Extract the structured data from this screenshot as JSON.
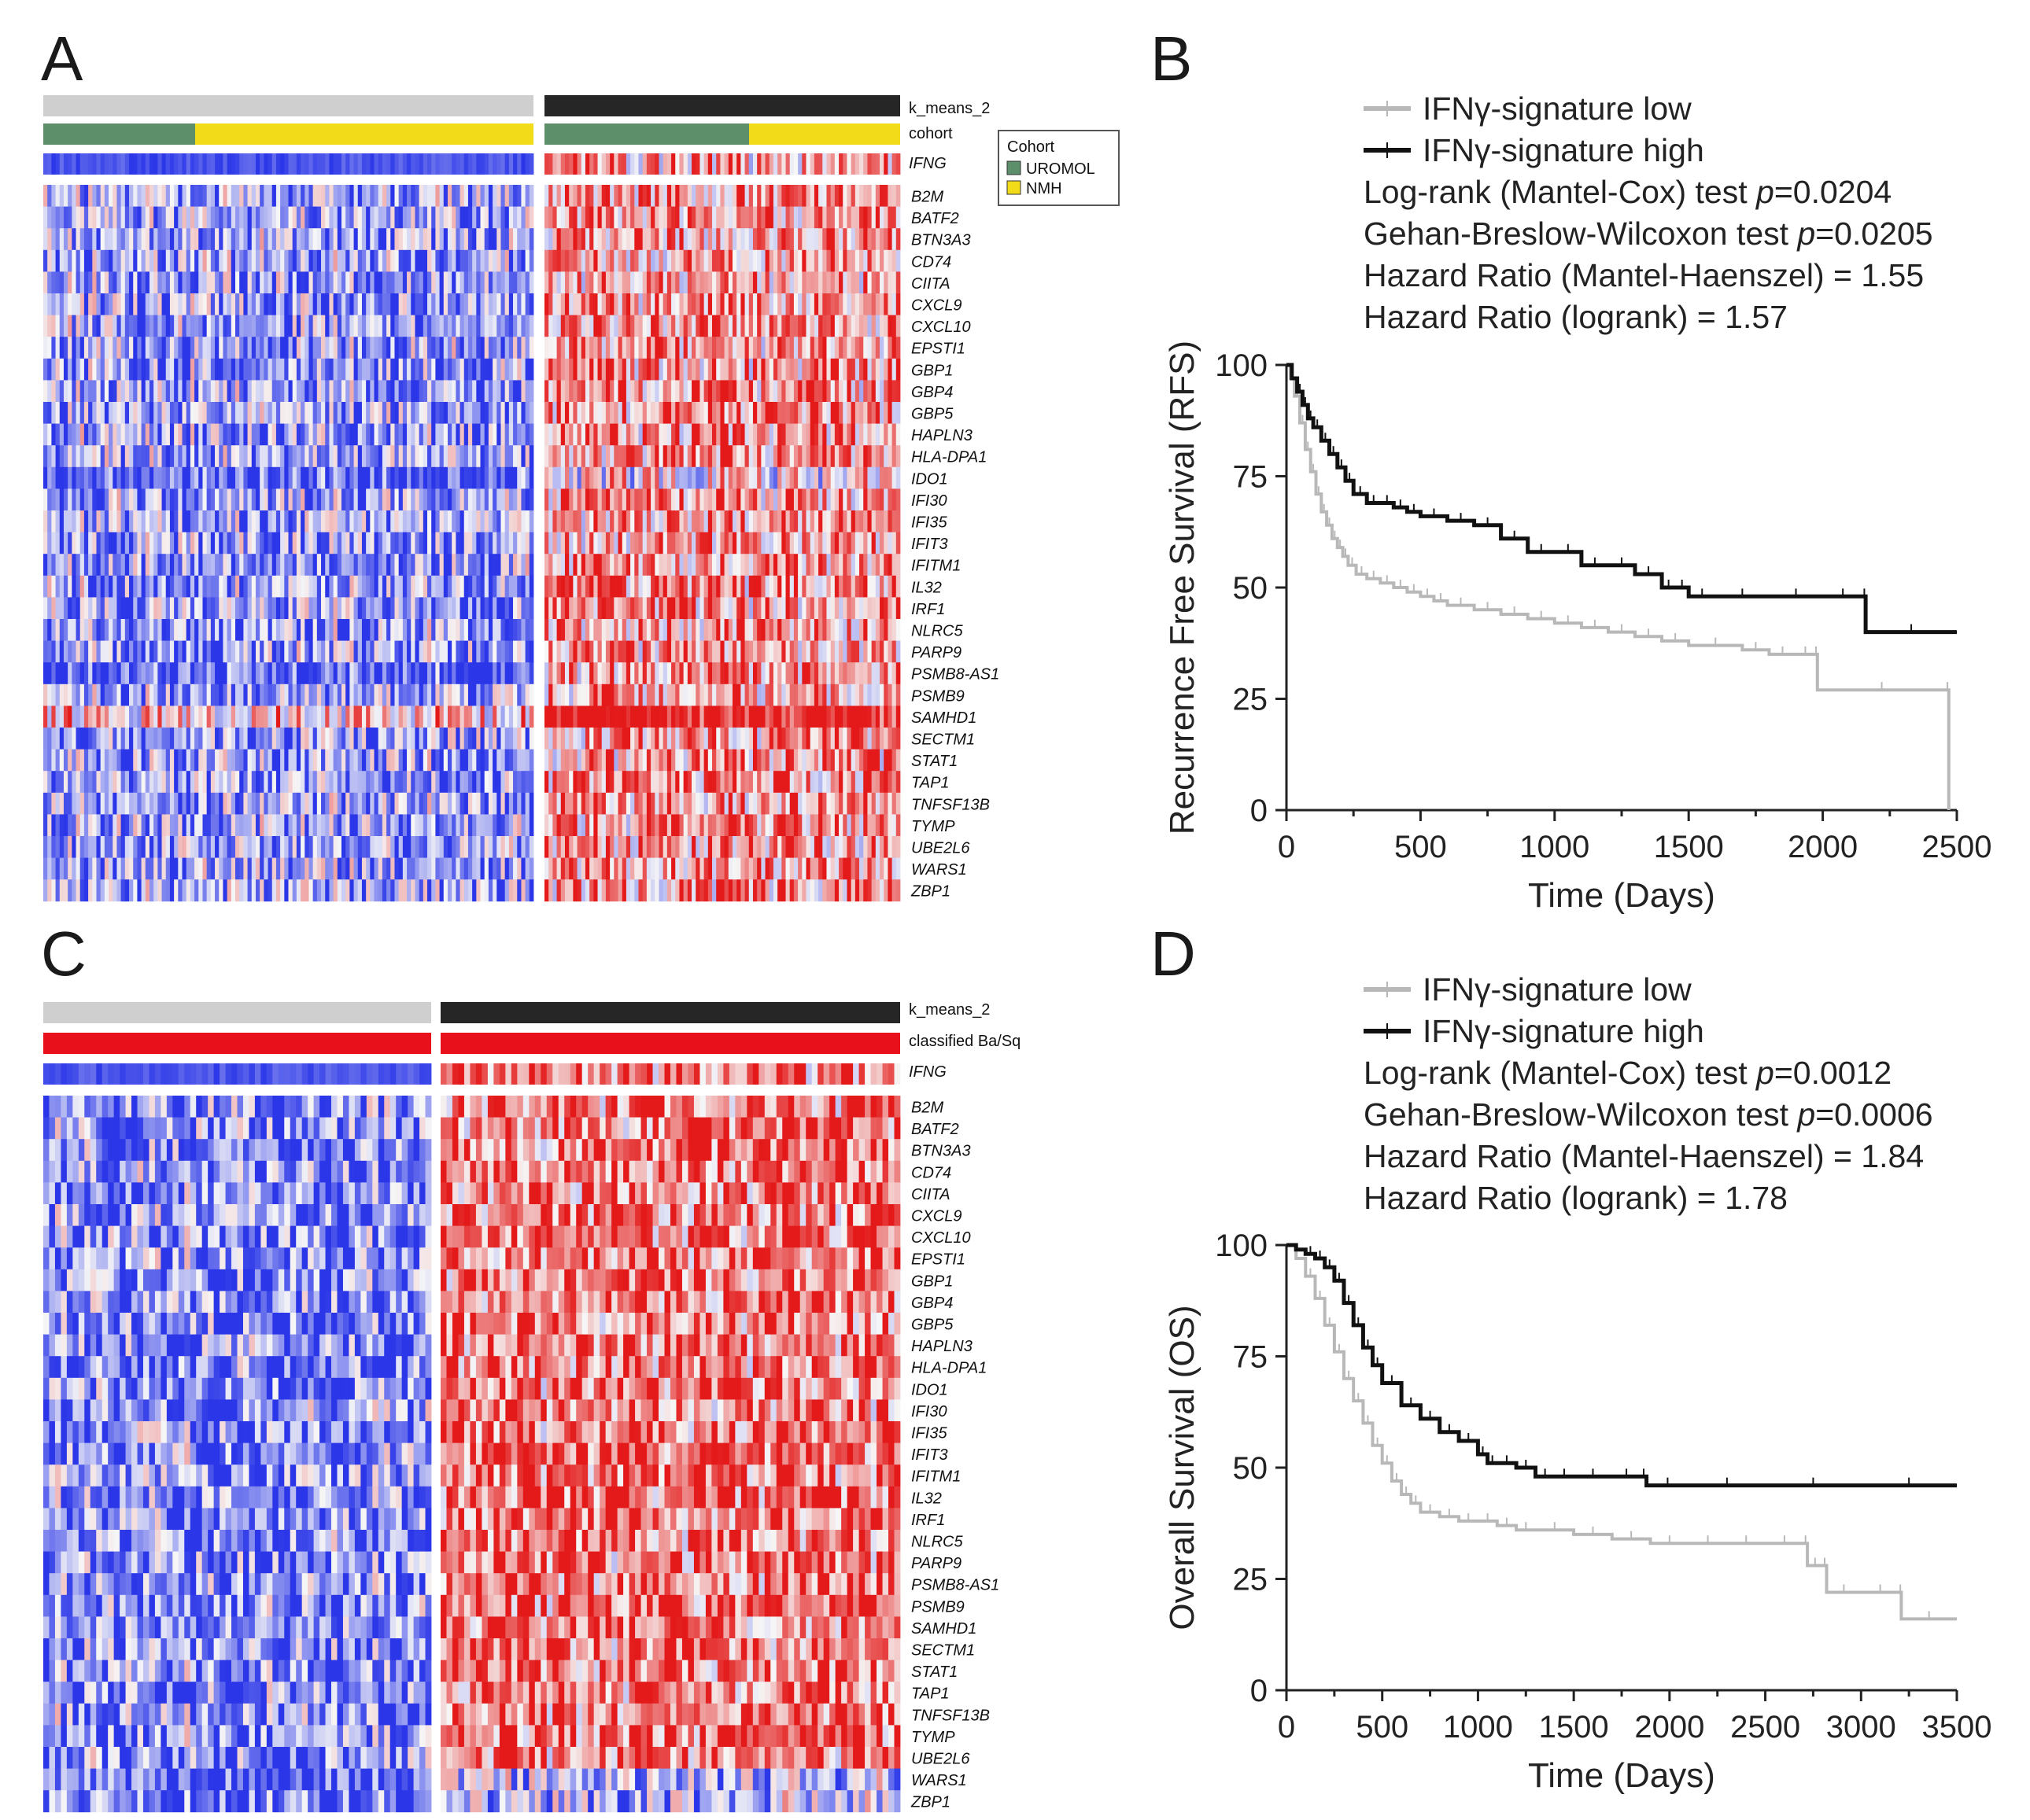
{
  "colors": {
    "low": "#2a36e8",
    "mid": "#f6f6f6",
    "high": "#e41a1a",
    "uromol": "#5e8f6b",
    "nmh": "#f2dc1a",
    "basq": "#e8101a",
    "cluster1": "#cfcfcf",
    "cluster2": "#262626",
    "sig_low": "#b8b8b8",
    "sig_high": "#111111"
  },
  "panels": {
    "A": {
      "letter": "A"
    },
    "B": {
      "letter": "B"
    },
    "C": {
      "letter": "C"
    },
    "D": {
      "letter": "D"
    }
  },
  "heatmapA": {
    "kmeans_label": "k_means_2",
    "cohort_label": "cohort",
    "ifng_label": "IFNG",
    "legend": {
      "title": "Cohort",
      "items": [
        {
          "label": "UROMOL",
          "color": "#5e8f6b"
        },
        {
          "label": "NMH",
          "color": "#f2dc1a"
        }
      ]
    },
    "genes": [
      "B2M",
      "BATF2",
      "BTN3A3",
      "CD74",
      "CIITA",
      "CXCL9",
      "CXCL10",
      "EPSTI1",
      "GBP1",
      "GBP4",
      "GBP5",
      "HAPLN3",
      "HLA-DPA1",
      "IDO1",
      "IFI30",
      "IFI35",
      "IFIT3",
      "IFITM1",
      "IL32",
      "IRF1",
      "NLRC5",
      "PARP9",
      "PSMB8-AS1",
      "PSMB9",
      "SAMHD1",
      "SECTM1",
      "STAT1",
      "TAP1",
      "TNFSF13B",
      "TYMP",
      "UBE2L6",
      "WARS1",
      "ZBP1"
    ]
  },
  "heatmapC": {
    "kmeans_label": "k_means_2",
    "class_label": "classified Ba/Sq",
    "ifng_label": "IFNG",
    "genes": [
      "B2M",
      "BATF2",
      "BTN3A3",
      "CD74",
      "CIITA",
      "CXCL9",
      "CXCL10",
      "EPSTI1",
      "GBP1",
      "GBP4",
      "GBP5",
      "HAPLN3",
      "HLA-DPA1",
      "IDO1",
      "IFI30",
      "IFI35",
      "IFIT3",
      "IFITM1",
      "IL32",
      "IRF1",
      "NLRC5",
      "PARP9",
      "PSMB8-AS1",
      "PSMB9",
      "SAMHD1",
      "SECTM1",
      "STAT1",
      "TAP1",
      "TNFSF13B",
      "TYMP",
      "UBE2L6",
      "WARS1",
      "ZBP1"
    ]
  },
  "chart_data": [
    {
      "panel": "B",
      "type": "line",
      "title": "",
      "xlabel": "Time (Days)",
      "ylabel": "Recurrence Free Survival (RFS)",
      "xlim": [
        0,
        2500
      ],
      "ylim": [
        0,
        100
      ],
      "xticks": [
        0,
        500,
        1000,
        1500,
        2000,
        2500
      ],
      "yticks": [
        0,
        25,
        50,
        75,
        100
      ],
      "legend": [
        "IFNγ-signature low",
        "IFNγ-signature high"
      ],
      "stats": [
        {
          "prefix": "Log-rank (Mantel-Cox) test ",
          "p": "p",
          "suffix": "=0.0204"
        },
        {
          "prefix": "Gehan-Breslow-Wilcoxon test ",
          "p": "p",
          "suffix": "=0.0205"
        },
        {
          "prefix": "Hazard Ratio (Mantel-Haenszel) = 1.55",
          "p": "",
          "suffix": ""
        },
        {
          "prefix": "Hazard Ratio (logrank) = 1.57",
          "p": "",
          "suffix": ""
        }
      ],
      "series": [
        {
          "name": "IFNγ-signature low",
          "x": [
            0,
            15,
            30,
            50,
            70,
            90,
            110,
            130,
            150,
            170,
            190,
            210,
            230,
            260,
            300,
            350,
            400,
            450,
            500,
            550,
            600,
            700,
            800,
            900,
            1000,
            1100,
            1200,
            1300,
            1400,
            1500,
            1700,
            1800,
            1900,
            1970,
            1980,
            2460,
            2470
          ],
          "y": [
            100,
            97,
            93,
            87,
            81,
            76,
            71,
            67,
            64,
            61,
            59,
            57,
            55,
            53,
            52,
            51,
            50,
            49,
            48,
            47,
            46,
            45,
            44,
            43,
            42,
            41,
            40,
            39,
            38,
            37,
            36,
            35,
            35,
            35,
            27,
            27,
            0
          ]
        },
        {
          "name": "IFNγ-signature high",
          "x": [
            0,
            20,
            40,
            60,
            80,
            100,
            130,
            160,
            190,
            220,
            250,
            300,
            350,
            400,
            450,
            500,
            600,
            700,
            800,
            900,
            1000,
            1100,
            1200,
            1300,
            1400,
            1450,
            1500,
            1600,
            1800,
            2000,
            2150,
            2160,
            2500
          ],
          "y": [
            100,
            97,
            94,
            91,
            88,
            86,
            83,
            80,
            77,
            74,
            71,
            69,
            69,
            68,
            67,
            66,
            65,
            64,
            61,
            58,
            58,
            55,
            55,
            53,
            50,
            50,
            48,
            48,
            48,
            48,
            48,
            40,
            40
          ]
        }
      ]
    },
    {
      "panel": "D",
      "type": "line",
      "title": "",
      "xlabel": "Time (Days)",
      "ylabel": "Overall Survival (OS)",
      "xlim": [
        0,
        3500
      ],
      "ylim": [
        0,
        100
      ],
      "xticks": [
        0,
        500,
        1000,
        1500,
        2000,
        2500,
        3000,
        3500
      ],
      "yticks": [
        0,
        25,
        50,
        75,
        100
      ],
      "legend": [
        "IFNγ-signature low",
        "IFNγ-signature high"
      ],
      "stats": [
        {
          "prefix": "Log-rank (Mantel-Cox) test ",
          "p": "p",
          "suffix": "=0.0012"
        },
        {
          "prefix": "Gehan-Breslow-Wilcoxon test ",
          "p": "p",
          "suffix": "=0.0006"
        },
        {
          "prefix": "Hazard Ratio (Mantel-Haenszel) = 1.84",
          "p": "",
          "suffix": ""
        },
        {
          "prefix": "Hazard Ratio (logrank) = 1.78",
          "p": "",
          "suffix": ""
        }
      ],
      "series": [
        {
          "name": "IFNγ-signature low",
          "x": [
            0,
            50,
            100,
            150,
            200,
            250,
            300,
            350,
            400,
            450,
            500,
            550,
            600,
            650,
            700,
            800,
            900,
            1000,
            1100,
            1200,
            1300,
            1500,
            1700,
            1900,
            2100,
            2300,
            2500,
            2700,
            2720,
            2800,
            2820,
            3000,
            3200,
            3210,
            3500
          ],
          "y": [
            100,
            97,
            93,
            88,
            82,
            76,
            70,
            65,
            60,
            55,
            51,
            47,
            44,
            42,
            40,
            39,
            38,
            38,
            37,
            36,
            36,
            35,
            34,
            33,
            33,
            33,
            33,
            33,
            28,
            28,
            22,
            22,
            22,
            16,
            16
          ]
        },
        {
          "name": "IFNγ-signature high",
          "x": [
            0,
            50,
            100,
            150,
            200,
            250,
            300,
            350,
            400,
            450,
            500,
            600,
            700,
            800,
            900,
            1000,
            1050,
            1100,
            1200,
            1300,
            1400,
            1500,
            1700,
            1850,
            1880,
            2100,
            2500,
            3000,
            3500
          ],
          "y": [
            100,
            99,
            98,
            97,
            95,
            92,
            87,
            82,
            77,
            73,
            69,
            64,
            61,
            58,
            56,
            53,
            51,
            51,
            50,
            48,
            48,
            48,
            48,
            48,
            46,
            46,
            46,
            46,
            46
          ]
        }
      ]
    }
  ]
}
